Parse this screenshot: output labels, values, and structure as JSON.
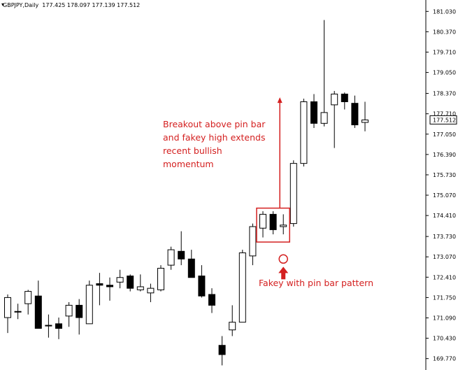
{
  "header": {
    "symbol": "GBPJPY,Daily",
    "ohlc": "177.425 178.097 177.139 177.512"
  },
  "annotations": {
    "breakout": [
      "Breakout above pin bar",
      "and fakey high extends",
      "recent bullish",
      "momentum"
    ],
    "fakey": "Fakey with pin bar pattern"
  },
  "colors": {
    "annotation": "#d42020",
    "candle_outline": "#000000",
    "bull_fill": "#ffffff",
    "bear_fill": "#000000",
    "price_tag_bg": "#ffffff"
  },
  "chart_data": {
    "type": "candlestick",
    "title": "GBPJPY,Daily",
    "y_axis_side": "right",
    "ylim": [
      169.4,
      181.4
    ],
    "y_ticks": [
      "181.030",
      "180.370",
      "179.710",
      "179.050",
      "178.370",
      "177.710",
      "177.050",
      "176.390",
      "175.730",
      "175.070",
      "174.410",
      "173.730",
      "173.070",
      "172.410",
      "171.750",
      "171.090",
      "170.430",
      "169.770"
    ],
    "current_price": "177.512",
    "candles": [
      {
        "o": 171.1,
        "h": 171.85,
        "l": 170.6,
        "c": 171.75
      },
      {
        "o": 171.3,
        "h": 171.55,
        "l": 171.05,
        "c": 171.3
      },
      {
        "o": 171.55,
        "h": 172.0,
        "l": 171.2,
        "c": 171.95
      },
      {
        "o": 171.8,
        "h": 172.3,
        "l": 170.75,
        "c": 170.75
      },
      {
        "o": 170.85,
        "h": 171.2,
        "l": 170.45,
        "c": 170.85
      },
      {
        "o": 170.9,
        "h": 171.1,
        "l": 170.4,
        "c": 170.75
      },
      {
        "o": 171.15,
        "h": 171.6,
        "l": 170.8,
        "c": 171.5
      },
      {
        "o": 171.5,
        "h": 171.7,
        "l": 170.55,
        "c": 171.1
      },
      {
        "o": 170.9,
        "h": 172.3,
        "l": 170.9,
        "c": 172.15
      },
      {
        "o": 172.2,
        "h": 172.55,
        "l": 171.5,
        "c": 172.15
      },
      {
        "o": 172.15,
        "h": 172.4,
        "l": 171.65,
        "c": 172.1
      },
      {
        "o": 172.25,
        "h": 172.65,
        "l": 172.05,
        "c": 172.4
      },
      {
        "o": 172.45,
        "h": 172.5,
        "l": 171.95,
        "c": 172.05
      },
      {
        "o": 172.0,
        "h": 172.5,
        "l": 171.95,
        "c": 172.1
      },
      {
        "o": 171.9,
        "h": 172.2,
        "l": 171.6,
        "c": 172.05
      },
      {
        "o": 172.0,
        "h": 172.8,
        "l": 171.95,
        "c": 172.7
      },
      {
        "o": 172.8,
        "h": 173.4,
        "l": 172.65,
        "c": 173.3
      },
      {
        "o": 173.25,
        "h": 173.9,
        "l": 172.8,
        "c": 173.0
      },
      {
        "o": 173.0,
        "h": 173.3,
        "l": 172.4,
        "c": 172.4
      },
      {
        "o": 172.45,
        "h": 172.8,
        "l": 171.75,
        "c": 171.8
      },
      {
        "o": 171.85,
        "h": 172.05,
        "l": 171.25,
        "c": 171.5
      },
      {
        "o": 170.2,
        "h": 170.5,
        "l": 169.55,
        "c": 169.9
      },
      {
        "o": 170.7,
        "h": 171.5,
        "l": 170.5,
        "c": 170.95
      },
      {
        "o": 170.95,
        "h": 173.3,
        "l": 170.95,
        "c": 173.2
      },
      {
        "o": 173.1,
        "h": 174.15,
        "l": 172.8,
        "c": 174.05
      },
      {
        "o": 174.0,
        "h": 174.55,
        "l": 173.7,
        "c": 174.45
      },
      {
        "o": 174.45,
        "h": 174.55,
        "l": 173.8,
        "c": 173.95
      },
      {
        "o": 174.05,
        "h": 174.45,
        "l": 173.8,
        "c": 174.1
      },
      {
        "o": 174.15,
        "h": 176.2,
        "l": 174.05,
        "c": 176.1
      },
      {
        "o": 176.1,
        "h": 178.2,
        "l": 176.0,
        "c": 178.1
      },
      {
        "o": 178.1,
        "h": 178.35,
        "l": 177.25,
        "c": 177.4
      },
      {
        "o": 177.4,
        "h": 180.75,
        "l": 177.3,
        "c": 177.75
      },
      {
        "o": 178.0,
        "h": 178.45,
        "l": 176.6,
        "c": 178.35
      },
      {
        "o": 178.35,
        "h": 178.4,
        "l": 177.85,
        "c": 178.1
      },
      {
        "o": 178.05,
        "h": 178.3,
        "l": 177.25,
        "c": 177.35
      },
      {
        "o": 177.43,
        "h": 178.1,
        "l": 177.14,
        "c": 177.51
      }
    ]
  }
}
